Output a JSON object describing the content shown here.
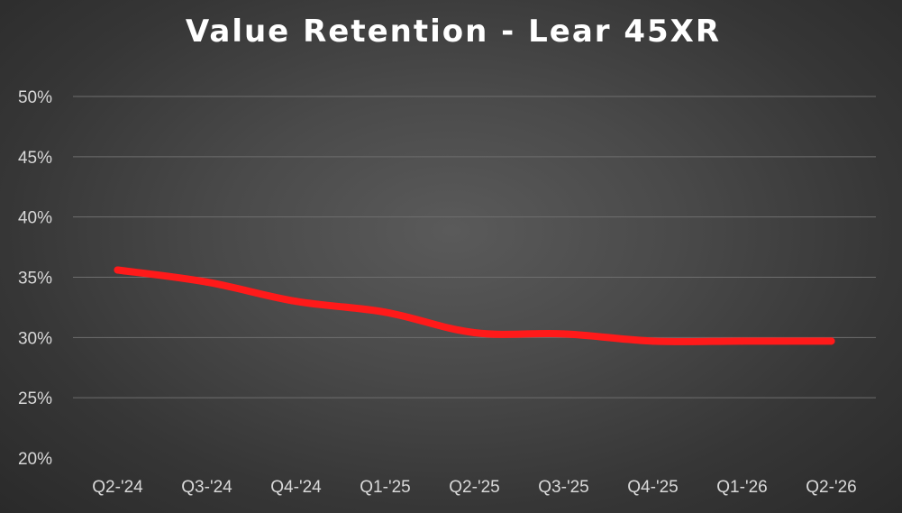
{
  "chart_data": {
    "type": "line",
    "title": "Value Retention - Lear 45XR",
    "xlabel": "",
    "ylabel": "",
    "categories": [
      "Q2-'24",
      "Q3-'24",
      "Q4-'24",
      "Q1-'25",
      "Q2-'25",
      "Q3-'25",
      "Q4-'25",
      "Q1-'26",
      "Q2-'26"
    ],
    "series": [
      {
        "values": [
          35.6,
          34.6,
          33.0,
          32.1,
          30.4,
          30.3,
          29.7,
          29.7,
          29.7
        ]
      }
    ],
    "ylim": [
      20,
      50
    ],
    "yticks": [
      "20%",
      "25%",
      "30%",
      "35%",
      "40%",
      "45%",
      "50%"
    ],
    "grid": true,
    "legend": "none",
    "colors": {
      "line": "#ff1a1a",
      "grid": "#6e6e6e",
      "text": "#d9d9d9",
      "title": "#ffffff"
    }
  }
}
